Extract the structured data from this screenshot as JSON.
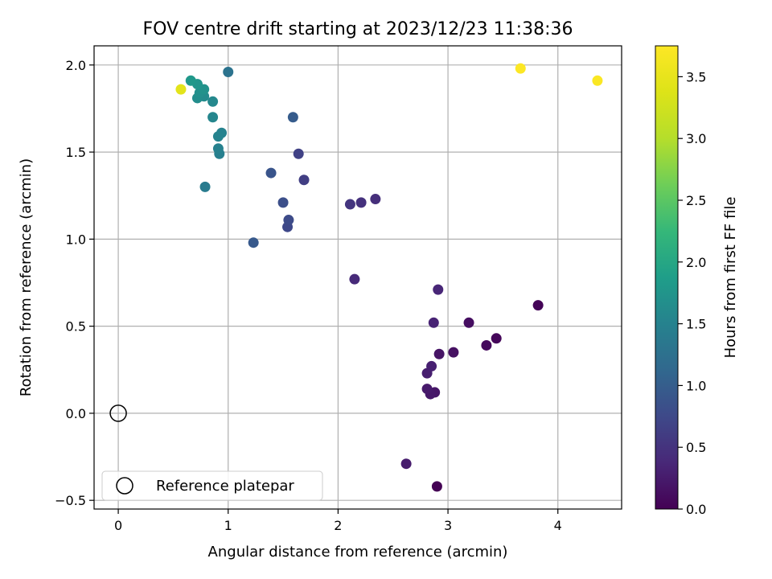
{
  "chart_data": {
    "type": "scatter",
    "title": "FOV centre drift starting at 2023/12/23 11:38:36",
    "xlabel": "Angular distance from reference (arcmin)",
    "ylabel": "Rotation from reference (arcmin)",
    "xlim": [
      -0.22,
      4.58
    ],
    "ylim": [
      -0.55,
      2.11
    ],
    "xticks": [
      0,
      1,
      2,
      3,
      4
    ],
    "xtick_labels": [
      "0",
      "1",
      "2",
      "3",
      "4"
    ],
    "yticks": [
      -0.5,
      0.0,
      0.5,
      1.0,
      1.5,
      2.0
    ],
    "ytick_labels": [
      "−0.5",
      "0.0",
      "0.5",
      "1.0",
      "1.5",
      "2.0"
    ],
    "grid": true,
    "legend": {
      "placement": "lower-left",
      "entries": [
        "Reference platepar"
      ]
    },
    "reference_point": {
      "x": 0.0,
      "y": 0.0
    },
    "colorbar": {
      "label": "Hours from first FF file",
      "range": [
        0.0,
        3.75
      ],
      "ticks": [
        0.0,
        0.5,
        1.0,
        1.5,
        2.0,
        2.5,
        3.0,
        3.5
      ],
      "tick_labels": [
        "0.0",
        "0.5",
        "1.0",
        "1.5",
        "2.0",
        "2.5",
        "3.0",
        "3.5"
      ],
      "colormap": "viridis"
    },
    "points": [
      {
        "x": 2.9,
        "y": -0.42,
        "t": 0.0
      },
      {
        "x": 3.82,
        "y": 0.62,
        "t": 0.03
      },
      {
        "x": 3.44,
        "y": 0.43,
        "t": 0.06
      },
      {
        "x": 3.35,
        "y": 0.39,
        "t": 0.09
      },
      {
        "x": 3.19,
        "y": 0.52,
        "t": 0.12
      },
      {
        "x": 3.05,
        "y": 0.35,
        "t": 0.15
      },
      {
        "x": 2.92,
        "y": 0.34,
        "t": 0.18
      },
      {
        "x": 2.88,
        "y": 0.12,
        "t": 0.2
      },
      {
        "x": 2.84,
        "y": 0.11,
        "t": 0.22
      },
      {
        "x": 2.81,
        "y": 0.14,
        "t": 0.24
      },
      {
        "x": 2.62,
        "y": -0.29,
        "t": 0.26
      },
      {
        "x": 2.81,
        "y": 0.23,
        "t": 0.28
      },
      {
        "x": 2.85,
        "y": 0.27,
        "t": 0.3
      },
      {
        "x": 2.87,
        "y": 0.52,
        "t": 0.33
      },
      {
        "x": 2.91,
        "y": 0.71,
        "t": 0.36
      },
      {
        "x": 2.15,
        "y": 0.77,
        "t": 0.4
      },
      {
        "x": 2.34,
        "y": 1.23,
        "t": 0.45
      },
      {
        "x": 2.21,
        "y": 1.21,
        "t": 0.48
      },
      {
        "x": 2.11,
        "y": 1.2,
        "t": 0.52
      },
      {
        "x": 1.69,
        "y": 1.34,
        "t": 0.62
      },
      {
        "x": 1.64,
        "y": 1.49,
        "t": 0.66
      },
      {
        "x": 1.54,
        "y": 1.07,
        "t": 0.74
      },
      {
        "x": 1.55,
        "y": 1.11,
        "t": 0.78
      },
      {
        "x": 1.5,
        "y": 1.21,
        "t": 0.82
      },
      {
        "x": 1.39,
        "y": 1.38,
        "t": 0.88
      },
      {
        "x": 1.23,
        "y": 0.98,
        "t": 0.94
      },
      {
        "x": 1.59,
        "y": 1.7,
        "t": 0.98
      },
      {
        "x": 1.0,
        "y": 1.96,
        "t": 1.28
      },
      {
        "x": 0.79,
        "y": 1.3,
        "t": 1.4
      },
      {
        "x": 0.92,
        "y": 1.49,
        "t": 1.45
      },
      {
        "x": 0.91,
        "y": 1.52,
        "t": 1.48
      },
      {
        "x": 0.94,
        "y": 1.61,
        "t": 1.5
      },
      {
        "x": 0.91,
        "y": 1.59,
        "t": 1.52
      },
      {
        "x": 0.86,
        "y": 1.7,
        "t": 1.55
      },
      {
        "x": 0.86,
        "y": 1.79,
        "t": 1.58
      },
      {
        "x": 0.78,
        "y": 1.82,
        "t": 1.62
      },
      {
        "x": 0.72,
        "y": 1.81,
        "t": 1.65
      },
      {
        "x": 0.74,
        "y": 1.84,
        "t": 1.68
      },
      {
        "x": 0.78,
        "y": 1.86,
        "t": 1.72
      },
      {
        "x": 0.72,
        "y": 1.89,
        "t": 1.76
      },
      {
        "x": 0.66,
        "y": 1.91,
        "t": 1.8
      },
      {
        "x": 0.57,
        "y": 1.86,
        "t": 3.45
      },
      {
        "x": 3.66,
        "y": 1.98,
        "t": 3.74
      },
      {
        "x": 4.36,
        "y": 1.91,
        "t": 3.72
      }
    ]
  }
}
